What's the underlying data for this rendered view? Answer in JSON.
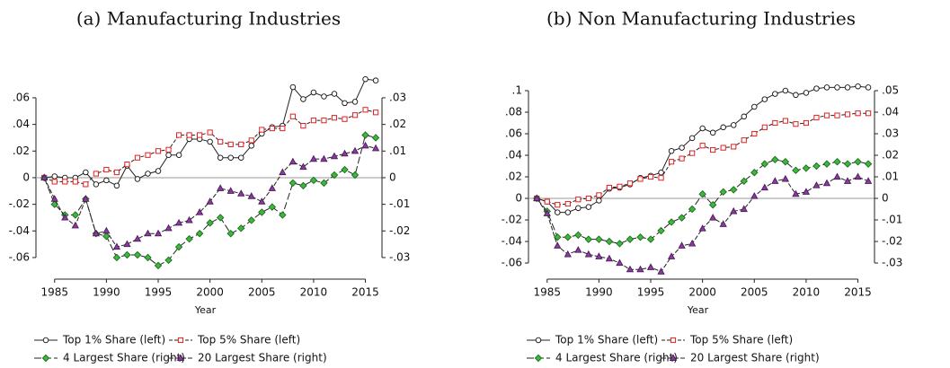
{
  "chart_data": [
    {
      "type": "line",
      "title": "(a) Manufacturing Industries",
      "xlabel": "Year",
      "x": [
        1984,
        1985,
        1986,
        1987,
        1988,
        1989,
        1990,
        1991,
        1992,
        1993,
        1994,
        1995,
        1996,
        1997,
        1998,
        1999,
        2000,
        2001,
        2002,
        2003,
        2004,
        2005,
        2006,
        2007,
        2008,
        2009,
        2010,
        2011,
        2012,
        2013,
        2014,
        2015,
        2016
      ],
      "xlim": [
        1983.2,
        2016.6
      ],
      "xticks": [
        1985,
        1990,
        1995,
        2000,
        2005,
        2010,
        2015
      ],
      "ylim": [
        -0.0688,
        0.0775
      ],
      "yticks": [
        {
          "value": -0.06,
          "label": "-.06"
        },
        {
          "value": -0.04,
          "label": "-.04"
        },
        {
          "value": -0.02,
          "label": "-.02"
        },
        0,
        {
          "value": 0.02,
          "label": ".02"
        },
        {
          "value": 0.04,
          "label": ".04"
        },
        {
          "value": 0.06,
          "label": ".06"
        }
      ],
      "y2lim": [
        -0.0344,
        0.03875
      ],
      "y2ticks": [
        {
          "value": -0.03,
          "label": "-.03"
        },
        {
          "value": -0.02,
          "label": "-.02"
        },
        {
          "value": -0.01,
          "label": "-.01"
        },
        0,
        {
          "value": 0.01,
          "label": ".01"
        },
        {
          "value": 0.02,
          "label": ".02"
        },
        {
          "value": 0.03,
          "label": ".03"
        }
      ],
      "series": [
        {
          "name": "Top 1% Share (left)",
          "color": "#ffffff",
          "marker": "circle",
          "dash": "none",
          "values": [
            0,
            0.001,
            0,
            0,
            0.004,
            -0.005,
            -0.002,
            -0.006,
            0.009,
            -0.001,
            0.003,
            0.005,
            0.017,
            0.017,
            0.029,
            0.029,
            0.027,
            0.015,
            0.015,
            0.015,
            0.024,
            0.033,
            0.038,
            0.039,
            0.068,
            0.059,
            0.064,
            0.061,
            0.063,
            0.056,
            0.057,
            0.074,
            0.073
          ]
        },
        {
          "name": "Top 5% Share (left)",
          "color": "#e02020",
          "marker": "square",
          "dash": "4,2",
          "values": [
            0,
            -0.003,
            -0.003,
            -0.003,
            -0.005,
            0.003,
            0.006,
            0.004,
            0.01,
            0.015,
            0.017,
            0.02,
            0.021,
            0.032,
            0.032,
            0.032,
            0.034,
            0.027,
            0.025,
            0.025,
            0.028,
            0.036,
            0.037,
            0.037,
            0.046,
            0.039,
            0.043,
            0.043,
            0.045,
            0.044,
            0.047,
            0.051,
            0.049
          ]
        },
        {
          "name": "4 Largest Share (right)",
          "color": "#3cb83c",
          "marker": "diamond",
          "dash": "8,3",
          "axis": "y2",
          "values": [
            0,
            -0.01,
            -0.014,
            -0.014,
            -0.008,
            -0.021,
            -0.022,
            -0.03,
            -0.029,
            -0.029,
            -0.03,
            -0.033,
            -0.031,
            -0.026,
            -0.023,
            -0.021,
            -0.017,
            -0.015,
            -0.021,
            -0.019,
            -0.016,
            -0.013,
            -0.011,
            -0.014,
            -0.002,
            -0.003,
            -0.001,
            -0.002,
            0.001,
            0.003,
            0.001,
            0.016,
            0.015
          ]
        },
        {
          "name": "20 Largest Share (right)",
          "color": "#8a3c9c",
          "marker": "triangle",
          "dash": "5,2",
          "axis": "y2",
          "values": [
            0,
            -0.008,
            -0.015,
            -0.018,
            -0.008,
            -0.021,
            -0.02,
            -0.026,
            -0.025,
            -0.023,
            -0.021,
            -0.021,
            -0.019,
            -0.017,
            -0.016,
            -0.013,
            -0.009,
            -0.004,
            -0.005,
            -0.006,
            -0.007,
            -0.009,
            -0.004,
            0.002,
            0.006,
            0.004,
            0.007,
            0.007,
            0.008,
            0.009,
            0.01,
            0.012,
            0.011
          ]
        }
      ]
    },
    {
      "type": "line",
      "title": "(b) Non Manufacturing Industries",
      "xlabel": "Year",
      "x": [
        1984,
        1985,
        1986,
        1987,
        1988,
        1989,
        1990,
        1991,
        1992,
        1993,
        1994,
        1995,
        1996,
        1997,
        1998,
        1999,
        2000,
        2001,
        2002,
        2003,
        2004,
        2005,
        2006,
        2007,
        2008,
        2009,
        2010,
        2011,
        2012,
        2013,
        2014,
        2015,
        2016
      ],
      "xlim": [
        1983.2,
        2016.6
      ],
      "xticks": [
        1985,
        1990,
        1995,
        2000,
        2005,
        2010,
        2015
      ],
      "ylim": [
        -0.0658,
        0.115
      ],
      "yticks": [
        {
          "value": -0.06,
          "label": "-.06"
        },
        {
          "value": -0.04,
          "label": "-.04"
        },
        {
          "value": -0.02,
          "label": "-.02"
        },
        0,
        {
          "value": 0.02,
          "label": ".02"
        },
        {
          "value": 0.04,
          "label": ".04"
        },
        {
          "value": 0.06,
          "label": ".06"
        },
        {
          "value": 0.08,
          "label": ".08"
        },
        {
          "value": 0.1,
          "label": ".1"
        }
      ],
      "y2lim": [
        -0.0329,
        0.0575
      ],
      "y2ticks": [
        {
          "value": -0.03,
          "label": "-.03"
        },
        {
          "value": -0.02,
          "label": "-.02"
        },
        {
          "value": -0.01,
          "label": "-.01"
        },
        0,
        {
          "value": 0.01,
          "label": ".01"
        },
        {
          "value": 0.02,
          "label": ".02"
        },
        {
          "value": 0.03,
          "label": ".03"
        },
        {
          "value": 0.04,
          "label": ".04"
        },
        {
          "value": 0.05,
          "label": ".05"
        }
      ],
      "series": [
        {
          "name": "Top 1% Share (left)",
          "color": "#ffffff",
          "marker": "circle",
          "dash": "none",
          "values": [
            0,
            -0.003,
            -0.013,
            -0.013,
            -0.009,
            -0.008,
            -0.002,
            0.009,
            0.01,
            0.013,
            0.019,
            0.021,
            0.024,
            0.044,
            0.047,
            0.056,
            0.065,
            0.061,
            0.066,
            0.068,
            0.076,
            0.085,
            0.092,
            0.097,
            0.1,
            0.096,
            0.098,
            0.102,
            0.103,
            0.103,
            0.103,
            0.104,
            0.103
          ]
        },
        {
          "name": "Top 5% Share (left)",
          "color": "#e02020",
          "marker": "square",
          "dash": "4,2",
          "values": [
            0,
            -0.003,
            -0.006,
            -0.005,
            -0.001,
            0,
            0.003,
            0.01,
            0.011,
            0.014,
            0.018,
            0.02,
            0.019,
            0.034,
            0.037,
            0.042,
            0.049,
            0.045,
            0.047,
            0.048,
            0.054,
            0.06,
            0.066,
            0.07,
            0.072,
            0.069,
            0.07,
            0.075,
            0.077,
            0.077,
            0.078,
            0.079,
            0.079
          ]
        },
        {
          "name": "4 Largest Share (right)",
          "color": "#3cb83c",
          "marker": "diamond",
          "dash": "8,3",
          "axis": "y2",
          "values": [
            0,
            -0.006,
            -0.018,
            -0.018,
            -0.017,
            -0.019,
            -0.019,
            -0.02,
            -0.021,
            -0.019,
            -0.018,
            -0.019,
            -0.015,
            -0.011,
            -0.009,
            -0.005,
            0.002,
            -0.003,
            0.003,
            0.004,
            0.008,
            0.012,
            0.016,
            0.018,
            0.017,
            0.013,
            0.014,
            0.015,
            0.016,
            0.017,
            0.016,
            0.017,
            0.016
          ]
        },
        {
          "name": "20 Largest Share (right)",
          "color": "#8a3c9c",
          "marker": "triangle",
          "dash": "5,2",
          "axis": "y2",
          "values": [
            0,
            -0.007,
            -0.022,
            -0.026,
            -0.024,
            -0.026,
            -0.027,
            -0.028,
            -0.03,
            -0.033,
            -0.033,
            -0.032,
            -0.034,
            -0.027,
            -0.022,
            -0.021,
            -0.014,
            -0.009,
            -0.012,
            -0.006,
            -0.005,
            0.001,
            0.005,
            0.008,
            0.009,
            0.002,
            0.003,
            0.006,
            0.007,
            0.01,
            0.008,
            0.01,
            0.008
          ]
        }
      ]
    }
  ]
}
